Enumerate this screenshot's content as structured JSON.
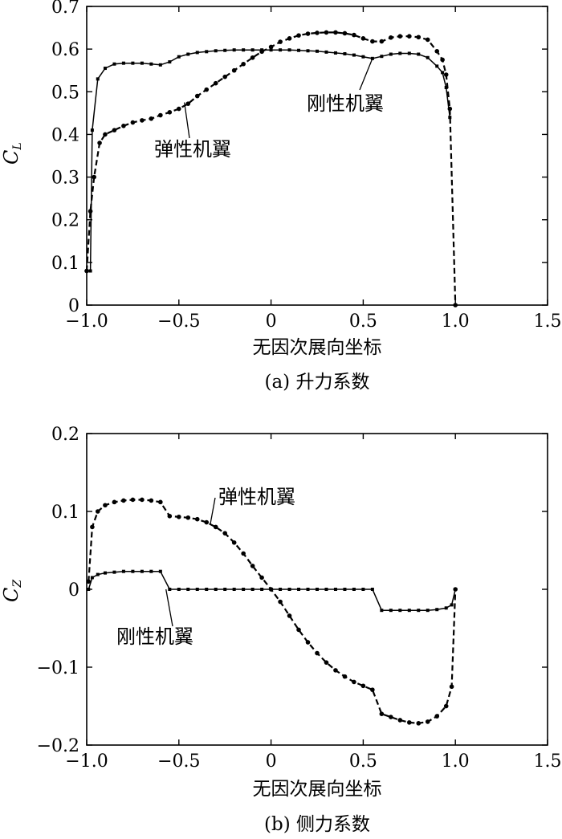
{
  "chart_data": [
    {
      "type": "line",
      "caption": "(a) 升力系数",
      "xlabel": "无因次展向坐标",
      "ylabel": "C",
      "ylabel_sub": "L",
      "xlim": [
        -1.0,
        1.5
      ],
      "ylim": [
        0,
        0.7
      ],
      "xticks": [
        "−1.0",
        "−0.5",
        "0",
        "0.5",
        "1.0",
        "1.5"
      ],
      "yticks": [
        "0",
        "0.1",
        "0.2",
        "0.3",
        "0.4",
        "0.5",
        "0.6",
        "0.7"
      ],
      "series": [
        {
          "name": "刚性机翼",
          "style": "solid",
          "marker": "square",
          "x": [
            -0.98,
            -0.97,
            -0.94,
            -0.9,
            -0.85,
            -0.8,
            -0.75,
            -0.7,
            -0.65,
            -0.6,
            -0.55,
            -0.5,
            -0.45,
            -0.4,
            -0.35,
            -0.3,
            -0.25,
            -0.2,
            -0.15,
            -0.1,
            -0.05,
            0.0,
            0.05,
            0.1,
            0.15,
            0.2,
            0.25,
            0.3,
            0.35,
            0.4,
            0.45,
            0.5,
            0.55,
            0.6,
            0.65,
            0.7,
            0.75,
            0.8,
            0.85,
            0.9,
            0.93,
            0.95,
            0.97
          ],
          "y": [
            0.08,
            0.41,
            0.53,
            0.555,
            0.565,
            0.567,
            0.567,
            0.567,
            0.565,
            0.563,
            0.57,
            0.582,
            0.588,
            0.592,
            0.594,
            0.596,
            0.597,
            0.598,
            0.598,
            0.598,
            0.598,
            0.598,
            0.598,
            0.598,
            0.597,
            0.596,
            0.595,
            0.593,
            0.591,
            0.589,
            0.586,
            0.582,
            0.578,
            0.583,
            0.588,
            0.59,
            0.59,
            0.588,
            0.58,
            0.56,
            0.545,
            0.51,
            0.44
          ]
        },
        {
          "name": "弹性机翼",
          "style": "dashed",
          "marker": "circle",
          "x": [
            -1.0,
            -0.98,
            -0.96,
            -0.93,
            -0.9,
            -0.85,
            -0.8,
            -0.75,
            -0.7,
            -0.65,
            -0.6,
            -0.55,
            -0.5,
            -0.45,
            -0.4,
            -0.35,
            -0.3,
            -0.25,
            -0.2,
            -0.15,
            -0.1,
            -0.05,
            0.0,
            0.05,
            0.1,
            0.15,
            0.2,
            0.25,
            0.3,
            0.35,
            0.4,
            0.45,
            0.5,
            0.55,
            0.6,
            0.65,
            0.7,
            0.75,
            0.8,
            0.85,
            0.9,
            0.93,
            0.95,
            0.97,
            1.0
          ],
          "y": [
            0.08,
            0.22,
            0.3,
            0.38,
            0.4,
            0.41,
            0.42,
            0.428,
            0.433,
            0.437,
            0.445,
            0.452,
            0.46,
            0.472,
            0.49,
            0.505,
            0.52,
            0.535,
            0.55,
            0.565,
            0.58,
            0.594,
            0.605,
            0.617,
            0.625,
            0.632,
            0.636,
            0.638,
            0.639,
            0.639,
            0.637,
            0.633,
            0.625,
            0.618,
            0.618,
            0.627,
            0.63,
            0.63,
            0.628,
            0.622,
            0.595,
            0.575,
            0.54,
            0.46,
            0.0
          ]
        }
      ],
      "annotations": [
        {
          "text": "刚性机翼"
        },
        {
          "text": "弹性机翼"
        }
      ]
    },
    {
      "type": "line",
      "caption": "(b) 侧力系数",
      "xlabel": "无因次展向坐标",
      "ylabel": "C",
      "ylabel_sub": "Z",
      "xlim": [
        -1.0,
        1.5
      ],
      "ylim": [
        -0.2,
        0.2
      ],
      "xticks": [
        "−1.0",
        "−0.5",
        "0",
        "0.5",
        "1.0",
        "1.5"
      ],
      "yticks": [
        "−0.2",
        "−0.1",
        "0",
        "0.1",
        "0.2"
      ],
      "series": [
        {
          "name": "刚性机翼",
          "style": "solid",
          "marker": "square",
          "x": [
            -0.99,
            -0.97,
            -0.94,
            -0.9,
            -0.85,
            -0.8,
            -0.75,
            -0.7,
            -0.65,
            -0.6,
            -0.55,
            -0.5,
            -0.45,
            -0.4,
            -0.35,
            -0.3,
            -0.25,
            -0.2,
            -0.15,
            -0.1,
            -0.05,
            0.0,
            0.05,
            0.1,
            0.15,
            0.2,
            0.25,
            0.3,
            0.35,
            0.4,
            0.45,
            0.5,
            0.55,
            0.6,
            0.65,
            0.7,
            0.75,
            0.8,
            0.85,
            0.9,
            0.95,
            0.98,
            1.0
          ],
          "y": [
            0.0,
            0.015,
            0.019,
            0.021,
            0.022,
            0.023,
            0.023,
            0.023,
            0.023,
            0.023,
            0.0,
            0.0,
            0.0,
            0.0,
            0.0,
            0.0,
            0.0,
            0.0,
            0.0,
            0.0,
            0.0,
            0.0,
            0.0,
            0.0,
            0.0,
            0.0,
            0.0,
            0.0,
            0.0,
            0.0,
            0.0,
            0.0,
            0.0,
            -0.027,
            -0.027,
            -0.027,
            -0.027,
            -0.027,
            -0.027,
            -0.026,
            -0.024,
            -0.02,
            0.0
          ]
        },
        {
          "name": "弹性机翼",
          "style": "dashed",
          "marker": "circle",
          "x": [
            -0.99,
            -0.97,
            -0.94,
            -0.9,
            -0.85,
            -0.8,
            -0.75,
            -0.7,
            -0.65,
            -0.6,
            -0.55,
            -0.5,
            -0.45,
            -0.4,
            -0.35,
            -0.3,
            -0.25,
            -0.2,
            -0.15,
            -0.1,
            -0.05,
            0.0,
            0.05,
            0.1,
            0.15,
            0.2,
            0.25,
            0.3,
            0.35,
            0.4,
            0.45,
            0.5,
            0.55,
            0.6,
            0.65,
            0.7,
            0.75,
            0.8,
            0.85,
            0.9,
            0.95,
            0.98,
            1.0
          ],
          "y": [
            0.01,
            0.08,
            0.1,
            0.108,
            0.112,
            0.114,
            0.115,
            0.115,
            0.114,
            0.112,
            0.094,
            0.093,
            0.092,
            0.09,
            0.086,
            0.08,
            0.072,
            0.06,
            0.046,
            0.03,
            0.015,
            0.0,
            -0.016,
            -0.034,
            -0.052,
            -0.068,
            -0.082,
            -0.094,
            -0.104,
            -0.112,
            -0.119,
            -0.124,
            -0.129,
            -0.16,
            -0.164,
            -0.168,
            -0.171,
            -0.172,
            -0.17,
            -0.163,
            -0.15,
            -0.125,
            0.0
          ]
        }
      ],
      "annotations": [
        {
          "text": "弹性机翼"
        },
        {
          "text": "刚性机翼"
        }
      ]
    }
  ]
}
